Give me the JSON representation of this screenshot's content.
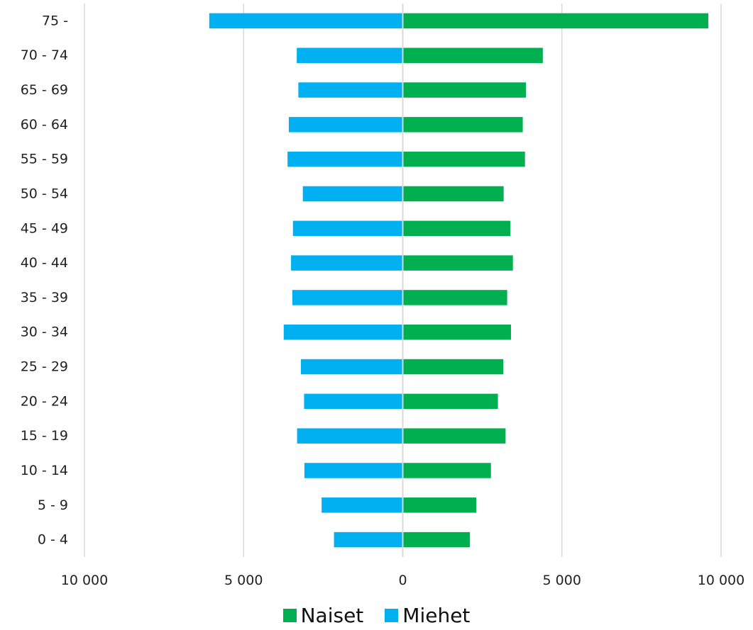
{
  "chart_data": {
    "type": "bar",
    "orientation": "horizontal",
    "layout": "population-pyramid",
    "categories": [
      "75 -",
      "70 - 74",
      "65 - 69",
      "60 - 64",
      "55 - 59",
      "50 - 54",
      "45 - 49",
      "40 - 44",
      "35 - 39",
      "30 - 34",
      "25 - 29",
      "20 - 24",
      "15 - 19",
      "10 - 14",
      "5 - 9",
      "0 - 4"
    ],
    "series": [
      {
        "name": "Naiset",
        "color": "#00b050",
        "side": "right",
        "values": [
          9600,
          4400,
          3870,
          3770,
          3840,
          3170,
          3380,
          3460,
          3280,
          3400,
          3160,
          2990,
          3230,
          2770,
          2310,
          2110
        ]
      },
      {
        "name": "Miehet",
        "color": "#00b0f0",
        "side": "left",
        "values": [
          6080,
          3330,
          3280,
          3580,
          3620,
          3140,
          3450,
          3510,
          3470,
          3740,
          3200,
          3100,
          3320,
          3090,
          2550,
          2160
        ]
      }
    ],
    "xlim": [
      -10000,
      10000
    ],
    "x_ticks": [
      -10000,
      -5000,
      0,
      5000,
      10000
    ],
    "x_tick_labels": [
      "10 000",
      "5 000",
      "0",
      "5 000",
      "10 000"
    ],
    "grid": "vertical",
    "legend": "bottom",
    "title": "",
    "xlabel": "",
    "ylabel": ""
  },
  "legend": {
    "naiset_label": "Naiset",
    "miehet_label": "Miehet",
    "naiset_color": "#00b050",
    "miehet_color": "#00b0f0"
  }
}
